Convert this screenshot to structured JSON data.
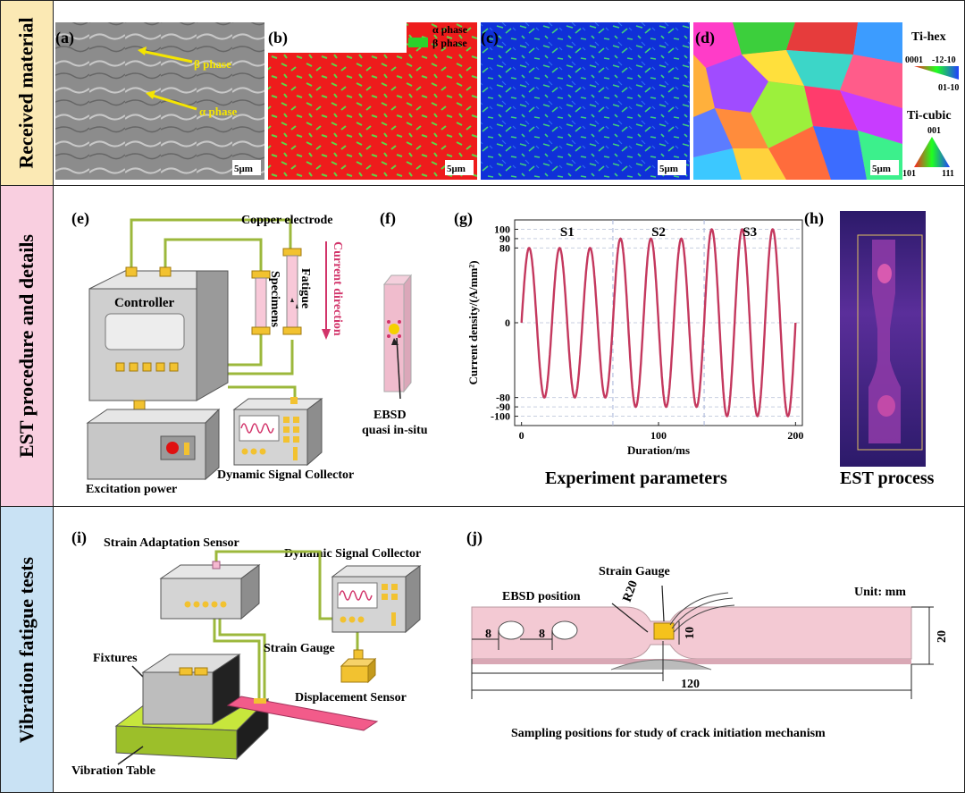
{
  "rows": [
    {
      "label": "Received material",
      "bg": "#fbe9b4"
    },
    {
      "label": "EST procedure and details",
      "bg": "#f9cfe0"
    },
    {
      "label": "Vibration fatigue tests",
      "bg": "#c9e2f4"
    }
  ],
  "panel_a": {
    "tag": "(a)",
    "beta": "β phase",
    "alpha": "α phase",
    "scale": "5μm"
  },
  "panel_b": {
    "tag": "(b)",
    "legend_alpha": "α phase",
    "legend_beta": "β phase",
    "scale": "5μm"
  },
  "panel_c": {
    "tag": "(c)",
    "scale": "5μm"
  },
  "panel_d": {
    "tag": "(d)",
    "scale": "5μm",
    "hex_title": "Ti-hex",
    "hex_l": "0001",
    "hex_r": "-12-10",
    "hex_b": "01-10",
    "cubic_title": "Ti-cubic",
    "cubic_t": "001",
    "cubic_l": "101",
    "cubic_r": "111"
  },
  "panel_e": {
    "tag": "(e)",
    "copper": "Copper electrode",
    "controller": "Controller",
    "specimens": "Specimens",
    "fatigue": "Fatigue",
    "current_dir": "Current direction",
    "excitation": "Excitation power",
    "dsc": "Dynamic Signal Collector"
  },
  "panel_f": {
    "tag": "(f)",
    "ebsd1": "EBSD",
    "ebsd2": "quasi in-situ"
  },
  "panel_g": {
    "tag": "(g)",
    "caption": "Experiment parameters"
  },
  "panel_h": {
    "tag": "(h)",
    "caption": "EST process"
  },
  "panel_i": {
    "tag": "(i)",
    "strain_sensor": "Strain Adaptation Sensor",
    "dsc": "Dynamic Signal Collector",
    "fixtures": "Fixtures",
    "strain_gauge": "Strain Gauge",
    "disp_sensor": "Displacement Sensor",
    "vib_table": "Vibration Table"
  },
  "panel_j": {
    "tag": "(j)",
    "strain_gauge": "Strain Gauge",
    "ebsd_pos": "EBSD position",
    "r20": "R20",
    "unit": "Unit: mm",
    "d8a": "8",
    "d8b": "8",
    "d10": "10",
    "d20": "20",
    "d120": "120",
    "caption": "Sampling positions for study of crack initiation mechanism"
  },
  "chart_data": {
    "type": "line",
    "xlabel": "Duration/ms",
    "ylabel": "Current density/(A/mm²)",
    "xlim": [
      -5,
      205
    ],
    "ylim": [
      -110,
      110
    ],
    "xticks": [
      0,
      100,
      200
    ],
    "yticks": [
      100,
      90,
      80,
      0,
      -80,
      -90,
      -100
    ],
    "ytick_labels": [
      "100",
      "90",
      "80",
      "0",
      "-80",
      "-90",
      "-100"
    ],
    "xtick_labels": [
      "0",
      "100",
      "200"
    ],
    "grid": true,
    "series": [
      {
        "name": "S1",
        "x_range": [
          0,
          66.7
        ],
        "amplitude": 80,
        "cycles": 3
      },
      {
        "name": "S2",
        "x_range": [
          66.7,
          133.3
        ],
        "amplitude": 90,
        "cycles": 3
      },
      {
        "name": "S3",
        "x_range": [
          133.3,
          200
        ],
        "amplitude": 100,
        "cycles": 3
      }
    ],
    "line_color": "#c4385e"
  }
}
